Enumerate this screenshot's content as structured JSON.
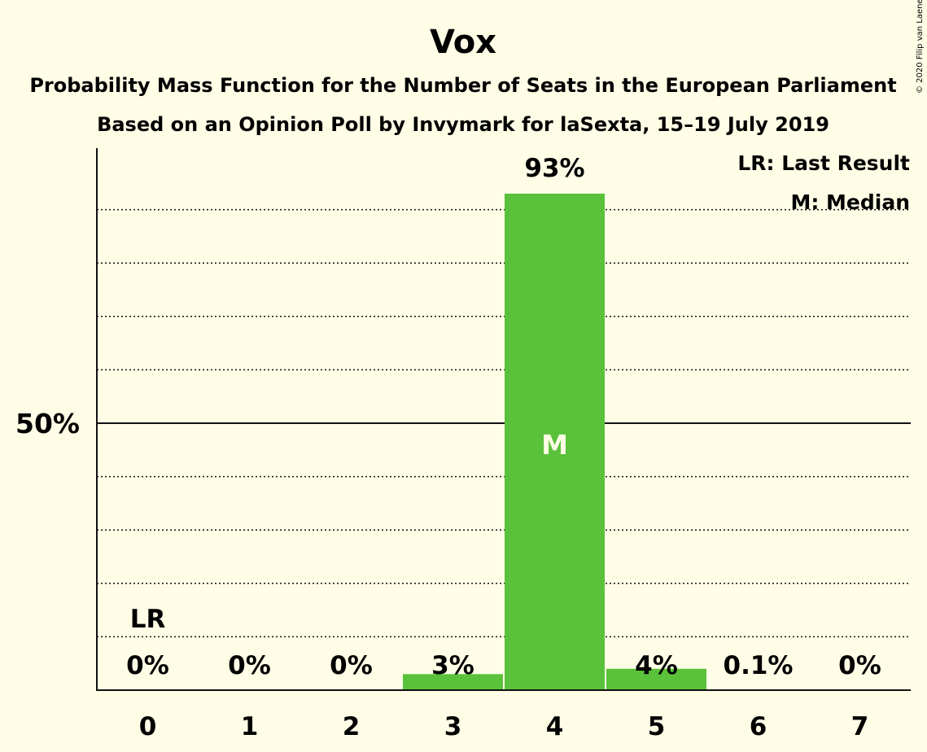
{
  "title": "Vox",
  "subtitle1": "Probability Mass Function for the Number of Seats in the European Parliament",
  "subtitle2": "Based on an Opinion Poll by Invymark for laSexta, 15–19 July 2019",
  "copyright": "© 2020 Filip van Laenen",
  "legend": {
    "last_result": "LR: Last Result",
    "median": "M: Median"
  },
  "colors": {
    "background": "#fffde6",
    "bar": "#5ac13a",
    "text": "#111111"
  },
  "chart_data": {
    "type": "bar",
    "categories": [
      "0",
      "1",
      "2",
      "3",
      "4",
      "5",
      "6",
      "7"
    ],
    "values": [
      0,
      0,
      0,
      3,
      93,
      4,
      0.1,
      0
    ],
    "data_labels": [
      "0%",
      "0%",
      "0%",
      "3%",
      "93%",
      "4%",
      "0.1%",
      "0%"
    ],
    "ylim": [
      0,
      100
    ],
    "ytick_labels": [
      {
        "value": 50,
        "label": "50%"
      }
    ],
    "gridlines": [
      10,
      20,
      30,
      40,
      60,
      70,
      80,
      90
    ],
    "grid": "dotted",
    "last_result": {
      "category": "0",
      "label": "LR"
    },
    "median": {
      "category": "4",
      "label": "M"
    },
    "legend_position": "top-right"
  }
}
